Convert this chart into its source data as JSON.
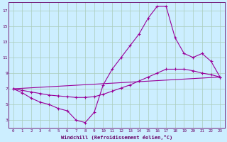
{
  "bg_color": "#cceeff",
  "line_color": "#990099",
  "grid_color": "#aaccbb",
  "xlim": [
    -0.5,
    23.5
  ],
  "ylim": [
    2,
    18
  ],
  "yticks": [
    3,
    5,
    7,
    9,
    11,
    13,
    15,
    17
  ],
  "xticks": [
    0,
    1,
    2,
    3,
    4,
    5,
    6,
    7,
    8,
    9,
    10,
    11,
    12,
    13,
    14,
    15,
    16,
    17,
    18,
    19,
    20,
    21,
    22,
    23
  ],
  "series1_x": [
    0,
    1,
    2,
    3,
    4,
    5,
    6,
    7,
    8,
    9,
    10,
    11,
    12,
    13,
    14,
    15,
    16,
    17,
    18,
    19,
    20,
    21,
    22,
    23
  ],
  "series1_y": [
    7.0,
    6.5,
    5.8,
    5.3,
    5.0,
    4.5,
    4.2,
    3.0,
    2.7,
    4.0,
    7.5,
    9.5,
    11.0,
    12.5,
    14.0,
    16.0,
    17.5,
    17.5,
    13.5,
    11.5,
    11.0,
    11.5,
    10.5,
    8.5
  ],
  "series2_x": [
    0,
    1,
    2,
    3,
    4,
    5,
    6,
    7,
    8,
    9,
    10,
    11,
    12,
    13,
    14,
    15,
    16,
    17,
    18,
    19,
    20,
    21,
    22,
    23
  ],
  "series2_y": [
    7.0,
    6.8,
    6.6,
    6.4,
    6.2,
    6.1,
    6.0,
    5.9,
    5.9,
    6.0,
    6.3,
    6.7,
    7.1,
    7.5,
    8.0,
    8.5,
    9.0,
    9.5,
    9.5,
    9.5,
    9.3,
    9.0,
    8.8,
    8.5
  ],
  "series3_x": [
    0,
    23
  ],
  "series3_y": [
    7.0,
    8.5
  ],
  "xlabel": "Windchill (Refroidissement éolien,°C)",
  "tick_color": "#660066",
  "xlabel_color": "#660066"
}
